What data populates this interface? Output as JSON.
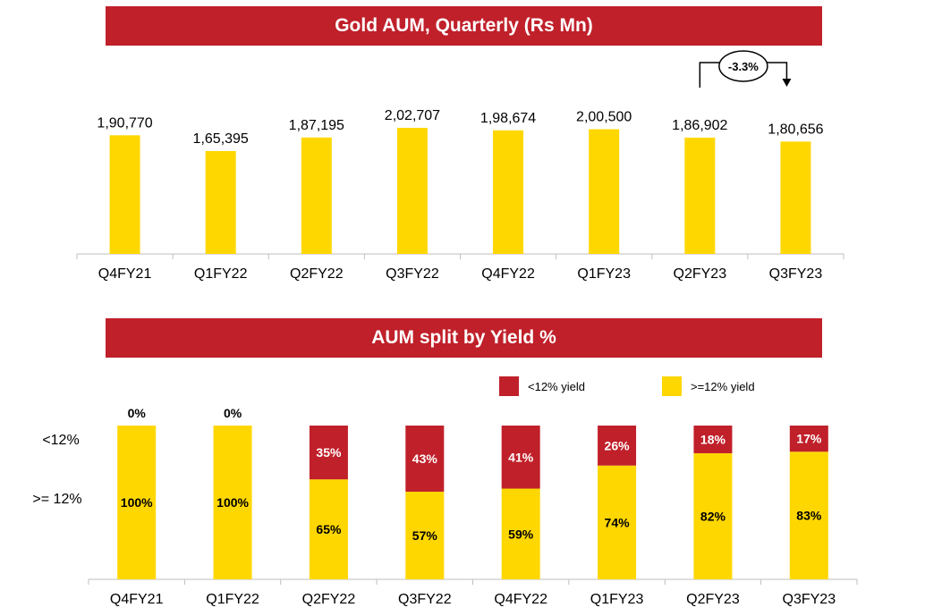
{
  "colors": {
    "banner": "#C0202A",
    "gold": "#FFD700",
    "red": "#C0202A",
    "axis": "#BFBFBF",
    "text": "#000000",
    "white": "#FFFFFF"
  },
  "chart_data": [
    {
      "type": "bar",
      "title": "Gold AUM, Quarterly (Rs Mn)",
      "categories": [
        "Q4FY21",
        "Q1FY22",
        "Q2FY22",
        "Q3FY22",
        "Q4FY22",
        "Q1FY23",
        "Q2FY23",
        "Q3FY23"
      ],
      "values": [
        190770,
        165395,
        187195,
        202707,
        198674,
        200500,
        186902,
        180656
      ],
      "value_labels": [
        "1,90,770",
        "1,65,395",
        "1,87,195",
        "2,02,707",
        "1,98,674",
        "2,00,500",
        "1,86,902",
        "1,80,656"
      ],
      "annotation": {
        "text": "-3.3%",
        "from": "Q2FY23",
        "to": "Q3FY23"
      },
      "ylim": [
        0,
        202707
      ]
    },
    {
      "type": "bar",
      "stacked": true,
      "title": "AUM split by Yield %",
      "categories": [
        "Q4FY21",
        "Q1FY22",
        "Q2FY22",
        "Q3FY22",
        "Q4FY22",
        "Q1FY23",
        "Q2FY23",
        "Q3FY23"
      ],
      "series": [
        {
          "name": ">=12% yield",
          "values": [
            100,
            100,
            65,
            57,
            59,
            74,
            82,
            83
          ]
        },
        {
          "name": "<12% yield",
          "values": [
            0,
            0,
            35,
            43,
            41,
            26,
            18,
            17
          ]
        }
      ],
      "row_labels": [
        "<12%",
        ">= 12%"
      ],
      "legend": [
        "<12% yield",
        ">=12% yield"
      ],
      "ylim": [
        0,
        100
      ]
    }
  ]
}
